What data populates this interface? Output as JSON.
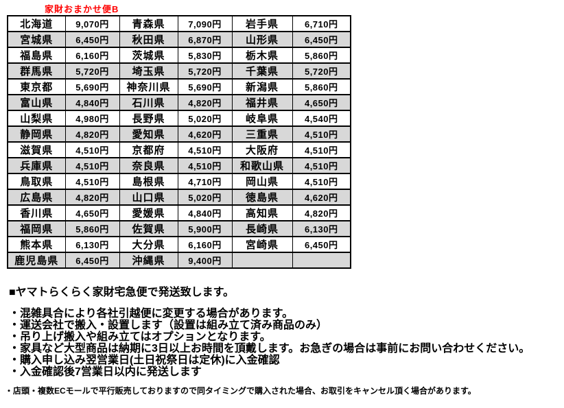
{
  "title": {
    "text": "家財おまかせ便B"
  },
  "colors": {
    "title_red": "#ff0000",
    "alt_row_gray": "#d8d8d8",
    "border_black": "#000000"
  },
  "table": {
    "description": "prefecture shipping fee table, cells alternate prefecture/price across 3 pairs per row",
    "rows": [
      [
        "北海道",
        "9,070円",
        "青森県",
        "7,090円",
        "岩手県",
        "6,710円"
      ],
      [
        "宮城県",
        "6,450円",
        "秋田県",
        "6,870円",
        "山形県",
        "6,450円"
      ],
      [
        "福島県",
        "6,160円",
        "茨城県",
        "5,830円",
        "栃木県",
        "5,860円"
      ],
      [
        "群馬県",
        "5,720円",
        "埼玉県",
        "5,720円",
        "千葉県",
        "5,720円"
      ],
      [
        "東京都",
        "5,690円",
        "神奈川県",
        "5,690円",
        "新潟県",
        "5,860円"
      ],
      [
        "富山県",
        "4,840円",
        "石川県",
        "4,820円",
        "福井県",
        "4,650円"
      ],
      [
        "山梨県",
        "4,980円",
        "長野県",
        "5,020円",
        "岐阜県",
        "4,540円"
      ],
      [
        "静岡県",
        "4,820円",
        "愛知県",
        "4,620円",
        "三重県",
        "4,510円"
      ],
      [
        "滋賀県",
        "4,510円",
        "京都府",
        "4,510円",
        "大阪府",
        "4,510円"
      ],
      [
        "兵庫県",
        "4,510円",
        "奈良県",
        "4,510円",
        "和歌山県",
        "4,510円"
      ],
      [
        "鳥取県",
        "4,510円",
        "島根県",
        "4,710円",
        "岡山県",
        "4,510円"
      ],
      [
        "広島県",
        "4,820円",
        "山口県",
        "5,020円",
        "徳島県",
        "4,620円"
      ],
      [
        "香川県",
        "4,650円",
        "愛媛県",
        "4,840円",
        "高知県",
        "4,820円"
      ],
      [
        "福岡県",
        "5,860円",
        "佐賀県",
        "5,900円",
        "長崎県",
        "6,130円"
      ],
      [
        "熊本県",
        "6,130円",
        "大分県",
        "6,160円",
        "宮崎県",
        "6,450円"
      ],
      [
        "鹿児島県",
        "6,450円",
        "沖縄県",
        "9,400円",
        "",
        ""
      ]
    ]
  },
  "notes": {
    "heading": "■ヤマトらくらく家財宅急便で発送致します。",
    "bullets": [
      "・混雑具合により各社引越便に変更する場合があります。",
      "・運送会社で搬入・設置します（設置は組み立て済み商品のみ）",
      "・吊り上げ搬入や組み立てはオプションとなります。",
      "・家具など大型商品は納期に3日以上お時間を頂戴します。お急ぎの場合は事前にお問い合わせください。",
      "・購入申し込み翌営業日(土日祝祭日は定休)に入金確認",
      "・入金確認後7営業日以内に発送します"
    ],
    "fine_print": "・店頭・複数ECモールで平行販売しておりますので同タイミングで購入された場合、お取引をキャンセル頂く場合があります。"
  }
}
